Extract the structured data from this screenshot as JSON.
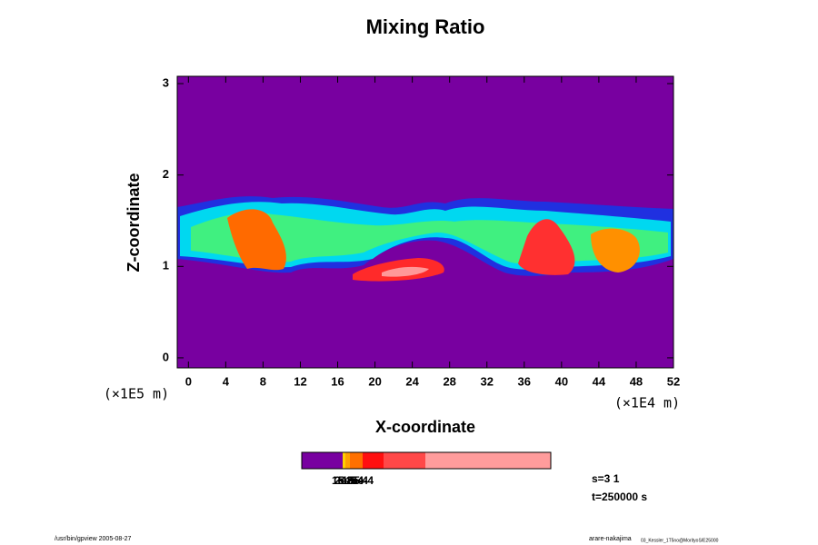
{
  "chart_data": {
    "type": "contour",
    "title": "Mixing Ratio",
    "x_label": "X-coordinate",
    "y_label": "Z-coordinate",
    "x_unit": "(×1E4 m)",
    "y_unit": "(×1E5 m)",
    "xlim": [
      -1.2,
      52
    ],
    "ylim": [
      -0.11,
      3.08
    ],
    "xticks": [
      0,
      4,
      8,
      12,
      16,
      20,
      24,
      28,
      32,
      36,
      40,
      44,
      48,
      52
    ],
    "yticks": [
      0,
      1,
      2,
      3
    ],
    "colorbar_labels": [
      "1e-5",
      "2e-5",
      "5e-5",
      "1e-4",
      "2e-4",
      "5e-4"
    ],
    "info": [
      "s=3 1",
      "t=250000 s"
    ],
    "footer_left": "/usr/bin/gpview 2005-08-27",
    "footer_right": "arare-nakajima",
    "footer_right_small": "03_Kessler_1T5no@MorityoS/E25000"
  }
}
